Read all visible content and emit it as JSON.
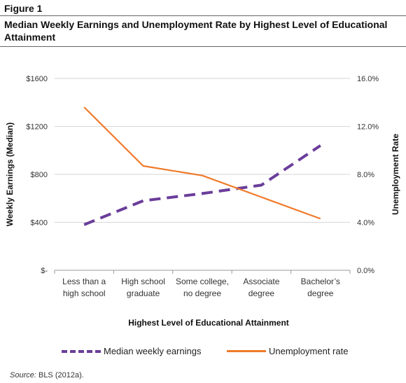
{
  "figure": {
    "label": "Figure 1",
    "title": "Median Weekly Earnings and Unemployment Rate by Highest Level of Educational Attainment"
  },
  "source": {
    "prefix": "Source:",
    "text": " BLS (2012a)."
  },
  "chart_data": {
    "type": "line",
    "categories": [
      [
        "Less than a",
        "high school"
      ],
      [
        "High school",
        "graduate"
      ],
      [
        "Some college,",
        "no degree"
      ],
      [
        "Associate",
        "degree"
      ],
      [
        "Bachelor’s",
        "degree"
      ]
    ],
    "xlabel": "Highest Level of Educational Attainment",
    "ylabel_left": "Weekly Earnings (Median)",
    "ylabel_right": "Unemployment Rate",
    "y_left": {
      "lim": [
        0,
        1600
      ],
      "ticks": [
        0,
        400,
        800,
        1200,
        1600
      ],
      "tick_labels": [
        "$-",
        "$400",
        "$800",
        "$1200",
        "$1600"
      ]
    },
    "y_right": {
      "lim": [
        0,
        16
      ],
      "ticks": [
        0,
        4,
        8,
        12,
        16
      ],
      "tick_labels": [
        "0.0%",
        "4.0%",
        "8.0%",
        "12.0%",
        "16.0%"
      ]
    },
    "series": [
      {
        "name": "Median weekly earnings",
        "axis": "left",
        "style": "dashed",
        "color": "#6a3d9a",
        "values": [
          380,
          580,
          640,
          710,
          1040
        ]
      },
      {
        "name": "Unemployment rate",
        "axis": "right",
        "style": "solid",
        "color": "#f07a2a",
        "values": [
          13.6,
          8.7,
          7.9,
          6.1,
          4.3
        ]
      }
    ],
    "grid": true,
    "legend_position": "bottom"
  }
}
